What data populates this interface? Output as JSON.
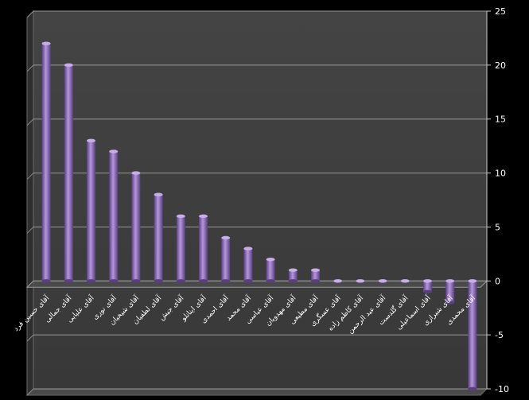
{
  "chart_data": {
    "type": "bar",
    "title": "",
    "xlabel": "",
    "ylabel": "",
    "ylim": [
      -10,
      25
    ],
    "yticks": [
      -10,
      -5,
      0,
      5,
      10,
      15,
      20,
      25
    ],
    "y_axis_position": "right",
    "grid": true,
    "legend": "none",
    "bar_color": "#8e6bb8",
    "background_color": "#3c3c3c",
    "page_background": "#000000",
    "categories": [
      "آقای حسین فرد",
      "آقای جمالی",
      "آقای علیایی",
      "آقای نوری",
      "آقای شیخیان",
      "آقای لطفیان",
      "آقای جیش",
      "آقای اینانلو",
      "آقای احمدی",
      "آقای محمد",
      "آقای عباسی",
      "آقای مهدویان",
      "آقای مطیعی",
      "آقای عسگری",
      "آقای کاظم زاده",
      "آقای عبد الرحمن",
      "آقای گلدست",
      "آقای اسماعیلی",
      "آقای شیرازی",
      "آقای محمدی"
    ],
    "values": [
      22,
      20,
      13,
      12,
      10,
      8,
      6,
      6,
      4,
      3,
      2,
      1,
      1,
      0,
      0,
      0,
      0,
      -1,
      -2,
      -10
    ]
  }
}
